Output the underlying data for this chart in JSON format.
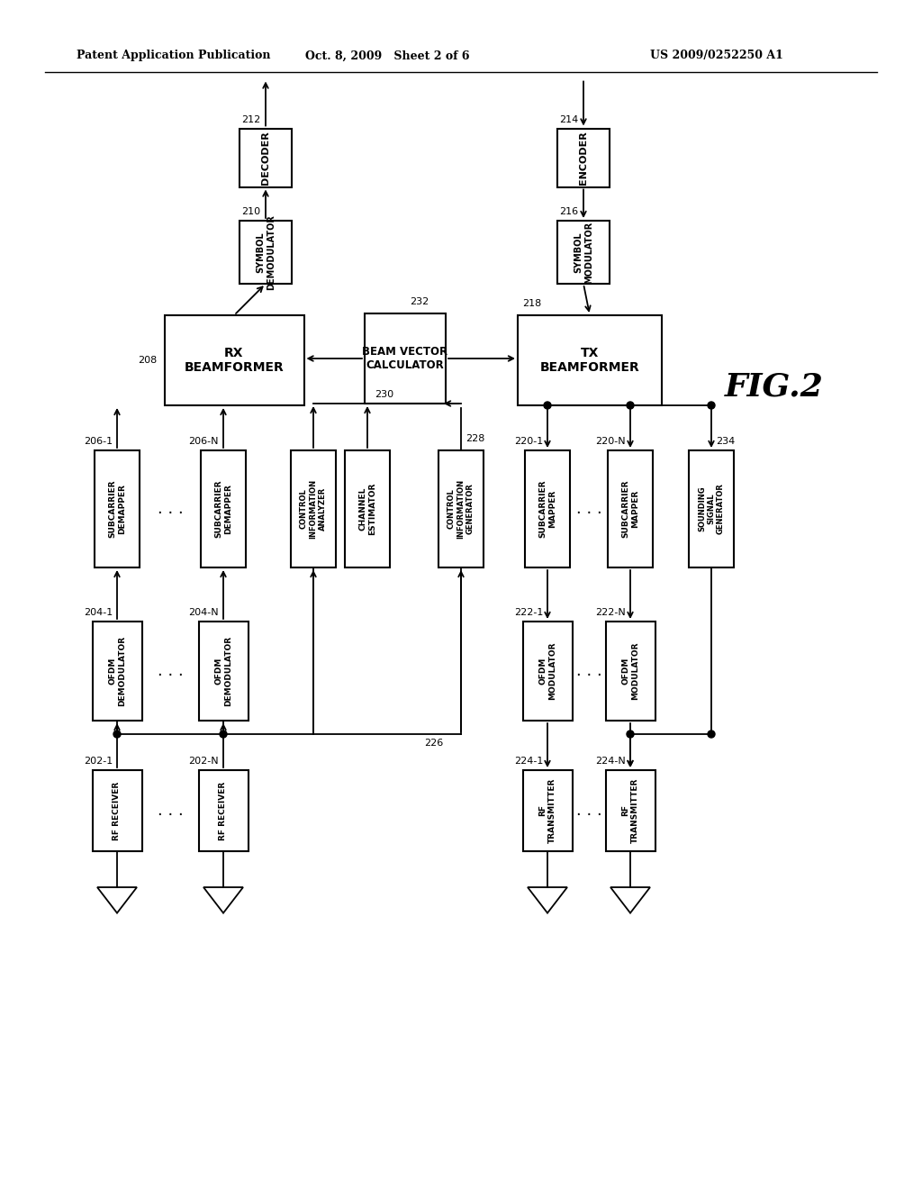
{
  "header_left": "Patent Application Publication",
  "header_center": "Oct. 8, 2009   Sheet 2 of 6",
  "header_right": "US 2009/0252250 A1",
  "fig_label": "FIG.2",
  "background": "#ffffff"
}
